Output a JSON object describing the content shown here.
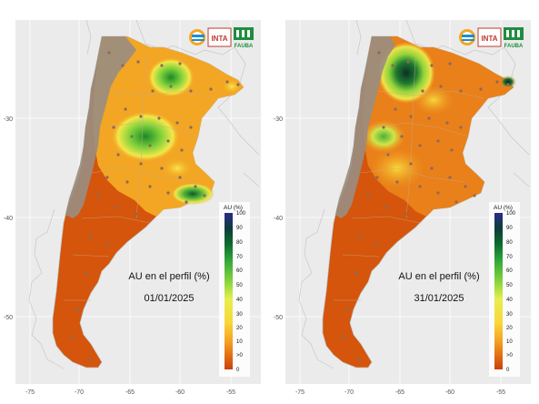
{
  "panels": [
    {
      "caption_title": "AU en el perfil (%)",
      "caption_date": "01/01/2025",
      "legend_title": "AU (%)",
      "legend_ticks": [
        "100",
        "90",
        "80",
        "70",
        "60",
        "50",
        "40",
        "30",
        "20",
        "10",
        ">0",
        "0"
      ],
      "x_ticks": [
        "-75",
        "-70",
        "-65",
        "-60",
        "-55"
      ],
      "y_ticks": [
        "-30",
        "-40",
        "-50"
      ],
      "logos": [
        "INTA",
        "FAUBA"
      ]
    },
    {
      "caption_title": "AU en el perfil (%)",
      "caption_date": "31/01/2025",
      "legend_title": "AU (%)",
      "legend_ticks": [
        "100",
        "90",
        "80",
        "70",
        "60",
        "50",
        "40",
        "30",
        "20",
        "10",
        ">0",
        "0"
      ],
      "x_ticks": [
        "-75",
        "-70",
        "-65",
        "-60",
        "-55"
      ],
      "y_ticks": [
        "-30",
        "-40",
        "-50"
      ],
      "logos": [
        "INTA",
        "FAUBA"
      ]
    }
  ],
  "colors": {
    "background": "#ebebeb",
    "grid": "#ffffff",
    "land_outline": "#bdbdbd",
    "dry": "#d4550b",
    "mountain": "#9a8d80",
    "station": "#8c6a5a"
  }
}
